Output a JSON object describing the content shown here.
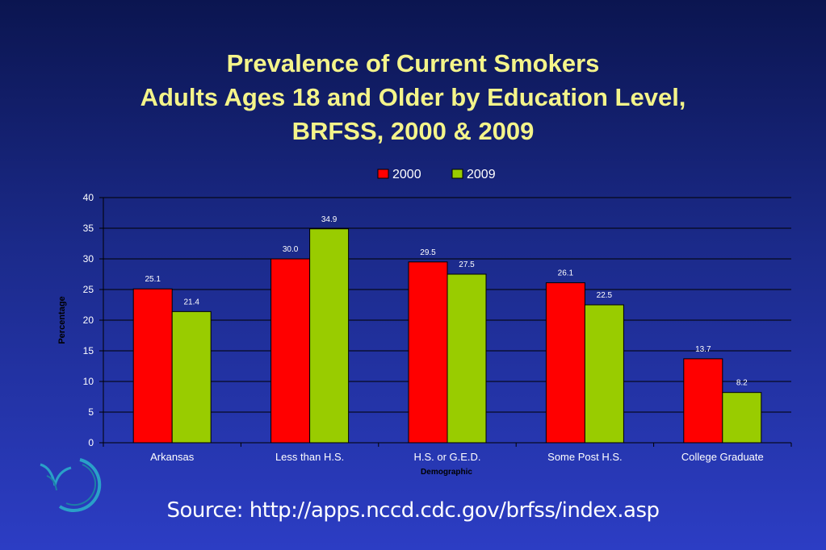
{
  "slide": {
    "title_line1": "Prevalence of Current Smokers",
    "title_line2": "Adults Ages 18 and Older by Education Level,",
    "title_line3": "BRFSS, 2000 & 2009",
    "source": "Source: http://apps.nccd.cdc.gov/brfss/index.asp",
    "logo_icon": "cdc-brfss-logo-icon"
  },
  "colors": {
    "series_2000": "#ff0000",
    "series_2009": "#99cc00",
    "title": "#f4f48a",
    "axis_text": "#ffffff"
  },
  "chart_data": {
    "type": "bar",
    "xlabel": "Demographic",
    "ylabel": "Percentage",
    "ylim": [
      0,
      40
    ],
    "yticks": [
      0,
      5,
      10,
      15,
      20,
      25,
      30,
      35,
      40
    ],
    "grid": true,
    "legend_position": "top",
    "categories": [
      "Arkansas",
      "Less than H.S.",
      "H.S. or G.E.D.",
      "Some Post H.S.",
      "College Graduate"
    ],
    "series": [
      {
        "name": "2000",
        "values": [
          25.1,
          30.0,
          29.5,
          26.1,
          13.7
        ],
        "labels": [
          "25.1",
          "30.0",
          "29.5",
          "26.1",
          "13.7"
        ]
      },
      {
        "name": "2009",
        "values": [
          21.4,
          34.9,
          27.5,
          22.5,
          8.2
        ],
        "labels": [
          "21.4",
          "34.9",
          "27.5",
          "22.5",
          "8.2"
        ]
      }
    ]
  }
}
